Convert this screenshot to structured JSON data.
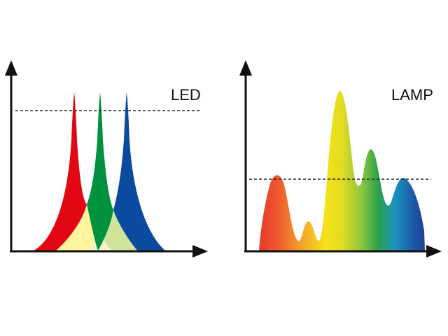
{
  "panels": {
    "led": {
      "label": "LED",
      "peaks": [
        {
          "name": "red-peak",
          "color": "#e30613"
        },
        {
          "name": "green-peak",
          "color": "#00923f"
        },
        {
          "name": "blue-peak",
          "color": "#0a4ba0"
        }
      ],
      "overlap_colors": {
        "yellow": "#fff5a0",
        "yellow_green": "#cfe39a",
        "pale": "#f7f2c8"
      }
    },
    "lamp": {
      "label": "LAMP",
      "spectrum_colors": [
        "#e8392c",
        "#f07b2c",
        "#f3b52b",
        "#f4e21b",
        "#d3d923",
        "#8cc63f",
        "#2aa14a",
        "#1a93bf",
        "#1b5ea8",
        "#1c3f94"
      ]
    }
  },
  "colors": {
    "axis": "#111111",
    "threshold": "#222222"
  }
}
